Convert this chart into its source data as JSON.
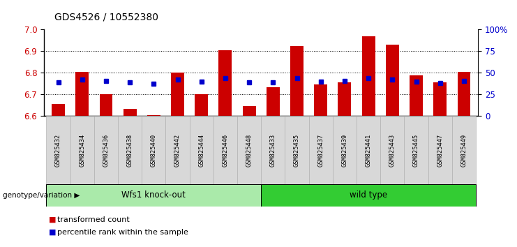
{
  "title": "GDS4526 / 10552380",
  "categories": [
    "GSM825432",
    "GSM825434",
    "GSM825436",
    "GSM825438",
    "GSM825440",
    "GSM825442",
    "GSM825444",
    "GSM825446",
    "GSM825448",
    "GSM825433",
    "GSM825435",
    "GSM825437",
    "GSM825439",
    "GSM825441",
    "GSM825443",
    "GSM825445",
    "GSM825447",
    "GSM825449"
  ],
  "red_values": [
    6.655,
    6.805,
    6.7,
    6.635,
    6.605,
    6.8,
    6.7,
    6.905,
    6.648,
    6.735,
    6.925,
    6.745,
    6.755,
    6.97,
    6.93,
    6.79,
    6.755,
    6.805
  ],
  "blue_values": [
    6.755,
    6.77,
    6.762,
    6.755,
    6.75,
    6.77,
    6.758,
    6.775,
    6.755,
    6.755,
    6.775,
    6.76,
    6.762,
    6.775,
    6.77,
    6.76,
    6.754,
    6.762
  ],
  "group1_label": "Wfs1 knock-out",
  "group2_label": "wild type",
  "group1_count": 9,
  "group2_count": 9,
  "group1_color": "#aaeaaa",
  "group2_color": "#33cc33",
  "genotype_label": "genotype/variation",
  "legend_red": "transformed count",
  "legend_blue": "percentile rank within the sample",
  "ylim_left": [
    6.6,
    7.0
  ],
  "yticks_left": [
    6.6,
    6.7,
    6.8,
    6.9,
    7.0
  ],
  "yticks_right": [
    0,
    25,
    50,
    75,
    100
  ],
  "ytick_right_labels": [
    "0",
    "25",
    "50",
    "75",
    "100%"
  ],
  "bar_color": "#cc0000",
  "dot_color": "#0000cc",
  "bar_bottom": 6.6,
  "tick_area_color": "#d8d8d8"
}
